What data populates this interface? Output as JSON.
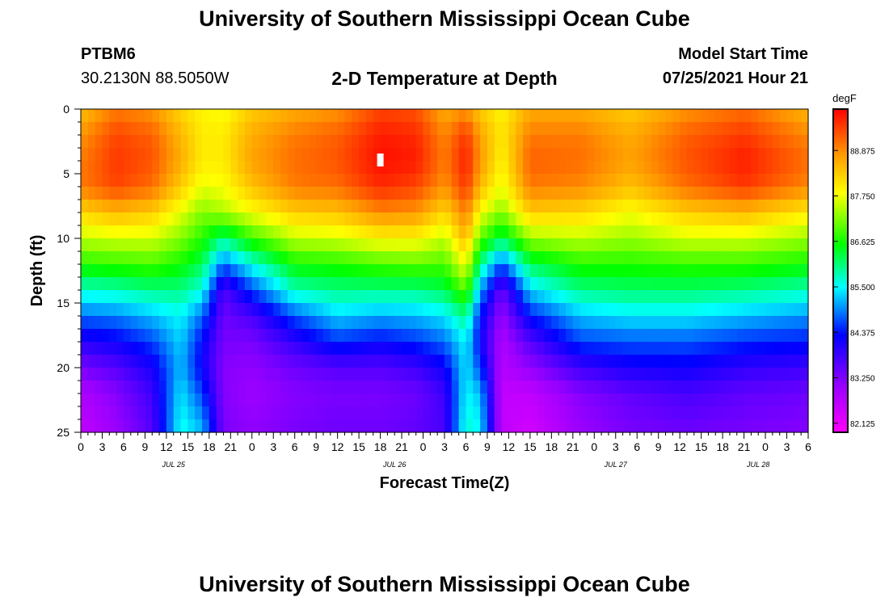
{
  "page": {
    "title_top": "University of Southern Mississippi Ocean Cube",
    "title_bottom": "University of Southern Mississippi Ocean Cube",
    "station": "PTBM6",
    "coords": "30.2130N  88.5050W",
    "chart_title": "2-D Temperature at Depth",
    "model_label": "Model Start Time",
    "model_time": "07/25/2021 Hour 21"
  },
  "chart_data": {
    "type": "heatmap",
    "title": "2-D Temperature at Depth",
    "xlabel": "Forecast Time(Z)",
    "ylabel": "Depth (ft)",
    "x_hours": [
      0,
      3,
      6,
      9,
      12,
      15,
      18,
      21,
      24,
      27,
      30,
      33,
      36,
      39,
      42,
      45,
      48,
      51,
      54,
      57,
      60,
      63,
      66,
      69,
      72,
      75,
      78,
      81,
      84,
      87,
      90,
      93,
      96,
      99,
      102
    ],
    "x_tick_labels": [
      "0",
      "3",
      "6",
      "9",
      "12",
      "15",
      "18",
      "21",
      "0",
      "3",
      "6",
      "9",
      "12",
      "15",
      "18",
      "21",
      "0",
      "3",
      "6",
      "9",
      "12",
      "15",
      "18",
      "21",
      "0",
      "3",
      "6",
      "9",
      "12",
      "15",
      "18",
      "21",
      "0",
      "3",
      "6"
    ],
    "x_range": [
      0,
      102
    ],
    "date_labels": [
      {
        "label": "JUL 25",
        "hour": 13
      },
      {
        "label": "JUL 26",
        "hour": 44
      },
      {
        "label": "JUL 27",
        "hour": 75
      },
      {
        "label": "JUL 28",
        "hour": 95
      }
    ],
    "y_ticks": [
      0,
      5,
      10,
      15,
      20,
      25
    ],
    "y_range": [
      0,
      25
    ],
    "colorbar": {
      "unit": "degF",
      "min": 81.9,
      "max": 89.9,
      "tick_values": [
        82.125,
        83.25,
        84.375,
        85.5,
        86.625,
        87.75,
        88.875
      ],
      "tick_labels": [
        "82.125",
        "83.250",
        "84.375",
        "85.500",
        "86.625",
        "87.750",
        "88.875"
      ]
    },
    "profile_depths": [
      0,
      2,
      4,
      6,
      8,
      10,
      12,
      14,
      16,
      18,
      20,
      22,
      25
    ],
    "profiles": [
      {
        "hour": 0,
        "temps": [
          88.4,
          88.8,
          89.0,
          89.0,
          88.2,
          87.5,
          86.7,
          85.7,
          84.8,
          84.0,
          83.3,
          82.8,
          82.6
        ]
      },
      {
        "hour": 5,
        "temps": [
          89.0,
          89.4,
          89.5,
          89.4,
          88.5,
          87.6,
          86.8,
          85.8,
          84.9,
          84.2,
          83.6,
          83.2,
          83.0
        ]
      },
      {
        "hour": 10,
        "temps": [
          88.8,
          89.2,
          89.3,
          89.1,
          88.3,
          87.6,
          86.9,
          86.0,
          85.2,
          84.6,
          84.1,
          83.8,
          83.6
        ]
      },
      {
        "hour": 14,
        "temps": [
          88.2,
          88.5,
          88.6,
          88.3,
          87.7,
          87.2,
          86.6,
          86.0,
          85.5,
          85.3,
          85.2,
          85.4,
          85.6
        ]
      },
      {
        "hour": 17,
        "temps": [
          87.9,
          88.0,
          88.0,
          87.7,
          87.2,
          86.7,
          86.2,
          85.6,
          84.8,
          84.3,
          84.2,
          84.6,
          85.2
        ]
      },
      {
        "hour": 20,
        "temps": [
          87.8,
          88.0,
          88.0,
          87.8,
          87.4,
          86.0,
          84.8,
          83.6,
          83.4,
          83.3,
          83.2,
          83.2,
          83.3
        ]
      },
      {
        "hour": 24,
        "temps": [
          88.3,
          88.6,
          88.7,
          88.4,
          87.8,
          86.8,
          85.6,
          84.6,
          83.7,
          83.3,
          83.1,
          83.0,
          83.1
        ]
      },
      {
        "hour": 30,
        "temps": [
          88.6,
          89.0,
          89.1,
          89.0,
          88.3,
          87.5,
          86.6,
          85.8,
          84.7,
          83.9,
          83.4,
          83.2,
          83.3
        ]
      },
      {
        "hour": 36,
        "temps": [
          88.8,
          89.2,
          89.3,
          89.1,
          88.4,
          87.6,
          86.7,
          86.0,
          85.3,
          84.5,
          83.6,
          83.3,
          83.4
        ]
      },
      {
        "hour": 42,
        "temps": [
          89.4,
          89.7,
          89.8,
          89.6,
          88.9,
          87.9,
          86.9,
          86.0,
          85.1,
          84.3,
          83.6,
          83.3,
          83.4
        ]
      },
      {
        "hour": 47,
        "temps": [
          89.3,
          89.6,
          89.7,
          89.4,
          88.8,
          87.9,
          87.0,
          86.0,
          85.2,
          84.5,
          83.8,
          83.4,
          83.5
        ]
      },
      {
        "hour": 51,
        "temps": [
          88.6,
          88.9,
          89.0,
          88.8,
          88.2,
          87.5,
          86.9,
          86.2,
          85.4,
          84.8,
          84.2,
          83.8,
          83.7
        ]
      },
      {
        "hour": 54,
        "temps": [
          88.8,
          89.5,
          89.7,
          89.5,
          89.0,
          88.5,
          87.8,
          87.0,
          86.0,
          85.5,
          85.4,
          85.5,
          85.7
        ]
      },
      {
        "hour": 56,
        "temps": [
          88.3,
          88.7,
          88.8,
          88.5,
          87.8,
          87.0,
          86.0,
          85.1,
          84.4,
          84.2,
          84.6,
          85.2,
          85.5
        ]
      },
      {
        "hour": 59,
        "temps": [
          87.9,
          88.0,
          87.9,
          87.7,
          87.2,
          86.2,
          84.7,
          83.4,
          83.0,
          82.8,
          82.7,
          82.6,
          82.6
        ]
      },
      {
        "hour": 63,
        "temps": [
          88.6,
          89.0,
          89.2,
          89.0,
          88.3,
          87.3,
          86.2,
          85.3,
          84.4,
          83.6,
          83.1,
          82.6,
          82.4
        ]
      },
      {
        "hour": 70,
        "temps": [
          88.6,
          89.0,
          89.1,
          88.9,
          88.2,
          87.5,
          86.7,
          86.0,
          85.2,
          84.6,
          83.8,
          83.2,
          83.0
        ]
      },
      {
        "hour": 77,
        "temps": [
          88.3,
          88.6,
          88.7,
          88.4,
          87.8,
          87.3,
          86.7,
          86.1,
          85.4,
          84.7,
          84.1,
          83.5,
          83.3
        ]
      },
      {
        "hour": 85,
        "temps": [
          88.8,
          89.2,
          89.3,
          89.1,
          88.3,
          87.6,
          86.8,
          86.1,
          85.4,
          84.7,
          84.2,
          83.7,
          83.4
        ]
      },
      {
        "hour": 93,
        "temps": [
          89.1,
          89.5,
          89.7,
          89.5,
          88.5,
          87.6,
          86.8,
          86.0,
          85.2,
          84.5,
          83.9,
          83.5,
          83.3
        ]
      },
      {
        "hour": 102,
        "temps": [
          88.5,
          88.9,
          89.1,
          88.9,
          88.0,
          87.3,
          86.6,
          85.8,
          85.0,
          84.4,
          83.8,
          83.4,
          83.2
        ]
      }
    ],
    "marker": {
      "hour": 42,
      "depth": 4
    }
  }
}
